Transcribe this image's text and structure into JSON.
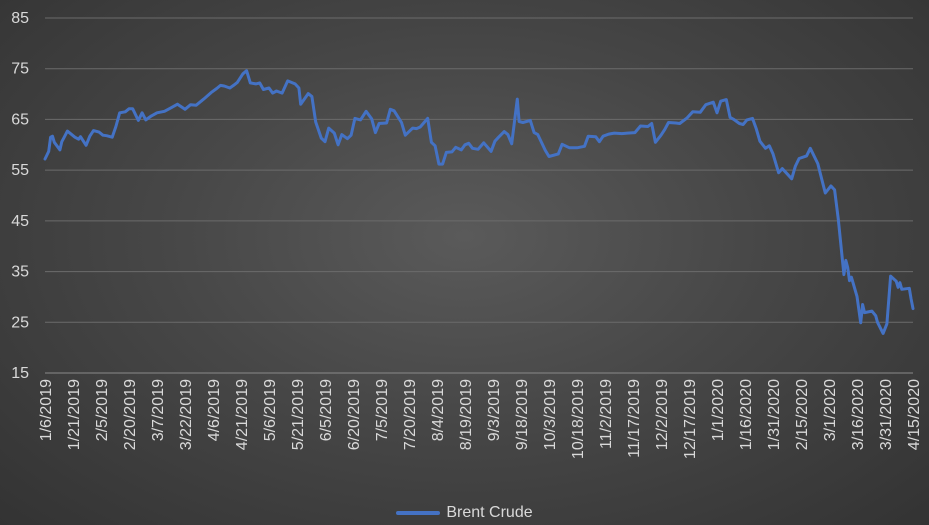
{
  "chart_data": {
    "type": "line",
    "title": "",
    "xlabel": "",
    "ylabel": "",
    "ylim": [
      15,
      85
    ],
    "y_ticks": [
      "15",
      "25",
      "35",
      "45",
      "55",
      "65",
      "75",
      "85"
    ],
    "x_ticks": [
      "1/6/2019",
      "1/21/2019",
      "2/5/2019",
      "2/20/2019",
      "3/7/2019",
      "3/22/2019",
      "4/6/2019",
      "4/21/2019",
      "5/6/2019",
      "5/21/2019",
      "6/5/2019",
      "6/20/2019",
      "7/5/2019",
      "7/20/2019",
      "8/4/2019",
      "8/19/2019",
      "9/3/2019",
      "9/18/2019",
      "10/3/2019",
      "10/18/2019",
      "11/2/2019",
      "11/17/2019",
      "12/2/2019",
      "12/17/2019",
      "1/1/2020",
      "1/16/2020",
      "1/31/2020",
      "2/15/2020",
      "3/1/2020",
      "3/16/2020",
      "3/31/2020",
      "4/15/2020"
    ],
    "x_start": "1/6/2019",
    "x_end": "4/15/2020",
    "gridlines": true,
    "legend_position": "bottom",
    "series": [
      {
        "name": "Brent Crude",
        "color": "#4472c4",
        "points": [
          [
            "1/6/2019",
            57.2
          ],
          [
            "1/8/2019",
            58.7
          ],
          [
            "1/9/2019",
            61.5
          ],
          [
            "1/10/2019",
            61.7
          ],
          [
            "1/11/2019",
            60.5
          ],
          [
            "1/14/2019",
            59.0
          ],
          [
            "1/15/2019",
            60.6
          ],
          [
            "1/16/2019",
            61.3
          ],
          [
            "1/18/2019",
            62.7
          ],
          [
            "1/22/2019",
            61.5
          ],
          [
            "1/24/2019",
            61.1
          ],
          [
            "1/25/2019",
            61.6
          ],
          [
            "1/28/2019",
            59.9
          ],
          [
            "1/30/2019",
            61.7
          ],
          [
            "2/1/2019",
            62.8
          ],
          [
            "2/4/2019",
            62.5
          ],
          [
            "2/6/2019",
            61.9
          ],
          [
            "2/8/2019",
            61.8
          ],
          [
            "2/11/2019",
            61.5
          ],
          [
            "2/13/2019",
            63.6
          ],
          [
            "2/15/2019",
            66.3
          ],
          [
            "2/18/2019",
            66.5
          ],
          [
            "2/20/2019",
            67.1
          ],
          [
            "2/22/2019",
            67.1
          ],
          [
            "2/25/2019",
            64.8
          ],
          [
            "2/27/2019",
            66.3
          ],
          [
            "3/1/2019",
            64.9
          ],
          [
            "3/4/2019",
            65.7
          ],
          [
            "3/7/2019",
            66.3
          ],
          [
            "3/11/2019",
            66.6
          ],
          [
            "3/14/2019",
            67.2
          ],
          [
            "3/18/2019",
            68.0
          ],
          [
            "3/22/2019",
            67.0
          ],
          [
            "3/25/2019",
            67.9
          ],
          [
            "3/28/2019",
            67.8
          ],
          [
            "4/1/2019",
            69.0
          ],
          [
            "4/5/2019",
            70.3
          ],
          [
            "4/8/2019",
            71.1
          ],
          [
            "4/10/2019",
            71.7
          ],
          [
            "4/12/2019",
            71.6
          ],
          [
            "4/15/2019",
            71.2
          ],
          [
            "4/17/2019",
            71.7
          ],
          [
            "4/19/2019",
            72.3
          ],
          [
            "4/22/2019",
            74.0
          ],
          [
            "4/24/2019",
            74.6
          ],
          [
            "4/26/2019",
            72.2
          ],
          [
            "4/29/2019",
            72.0
          ],
          [
            "5/1/2019",
            72.2
          ],
          [
            "5/3/2019",
            70.9
          ],
          [
            "5/6/2019",
            71.2
          ],
          [
            "5/8/2019",
            70.2
          ],
          [
            "5/10/2019",
            70.6
          ],
          [
            "5/13/2019",
            70.2
          ],
          [
            "5/16/2019",
            72.6
          ],
          [
            "5/20/2019",
            72.0
          ],
          [
            "5/22/2019",
            71.2
          ],
          [
            "5/23/2019",
            68.0
          ],
          [
            "5/27/2019",
            70.1
          ],
          [
            "5/29/2019",
            69.5
          ],
          [
            "5/31/2019",
            64.5
          ],
          [
            "6/3/2019",
            61.3
          ],
          [
            "6/5/2019",
            60.6
          ],
          [
            "6/7/2019",
            63.3
          ],
          [
            "6/10/2019",
            62.3
          ],
          [
            "6/12/2019",
            60.0
          ],
          [
            "6/14/2019",
            62.0
          ],
          [
            "6/17/2019",
            61.2
          ],
          [
            "6/19/2019",
            61.9
          ],
          [
            "6/21/2019",
            65.2
          ],
          [
            "6/24/2019",
            64.9
          ],
          [
            "6/27/2019",
            66.6
          ],
          [
            "6/30/2019",
            65.1
          ],
          [
            "7/2/2019",
            62.4
          ],
          [
            "7/4/2019",
            64.2
          ],
          [
            "7/8/2019",
            64.3
          ],
          [
            "7/10/2019",
            67.0
          ],
          [
            "7/12/2019",
            66.7
          ],
          [
            "7/16/2019",
            64.4
          ],
          [
            "7/18/2019",
            61.9
          ],
          [
            "7/22/2019",
            63.3
          ],
          [
            "7/24/2019",
            63.2
          ],
          [
            "7/26/2019",
            63.5
          ],
          [
            "7/30/2019",
            65.2
          ],
          [
            "8/1/2019",
            60.5
          ],
          [
            "8/3/2019",
            59.8
          ],
          [
            "8/5/2019",
            56.2
          ],
          [
            "8/7/2019",
            56.2
          ],
          [
            "8/9/2019",
            58.5
          ],
          [
            "8/12/2019",
            58.6
          ],
          [
            "8/14/2019",
            59.5
          ],
          [
            "8/17/2019",
            59.0
          ],
          [
            "8/19/2019",
            60.0
          ],
          [
            "8/21/2019",
            60.3
          ],
          [
            "8/23/2019",
            59.3
          ],
          [
            "8/26/2019",
            59.1
          ],
          [
            "8/29/2019",
            60.4
          ],
          [
            "9/2/2019",
            58.7
          ],
          [
            "9/4/2019",
            60.7
          ],
          [
            "9/6/2019",
            61.5
          ],
          [
            "9/9/2019",
            62.6
          ],
          [
            "9/11/2019",
            62.0
          ],
          [
            "9/13/2019",
            60.2
          ],
          [
            "9/16/2019",
            69.0
          ],
          [
            "9/17/2019",
            64.6
          ],
          [
            "9/19/2019",
            64.4
          ],
          [
            "9/23/2019",
            64.8
          ],
          [
            "9/25/2019",
            62.4
          ],
          [
            "9/27/2019",
            62.0
          ],
          [
            "10/1/2019",
            58.9
          ],
          [
            "10/3/2019",
            57.7
          ],
          [
            "10/8/2019",
            58.2
          ],
          [
            "10/10/2019",
            60.1
          ],
          [
            "10/14/2019",
            59.4
          ],
          [
            "10/16/2019",
            59.4
          ],
          [
            "10/18/2019",
            59.4
          ],
          [
            "10/22/2019",
            59.7
          ],
          [
            "10/24/2019",
            61.7
          ],
          [
            "10/28/2019",
            61.6
          ],
          [
            "10/30/2019",
            60.6
          ],
          [
            "11/1/2019",
            61.7
          ],
          [
            "11/4/2019",
            62.1
          ],
          [
            "11/7/2019",
            62.3
          ],
          [
            "11/11/2019",
            62.2
          ],
          [
            "11/14/2019",
            62.3
          ],
          [
            "11/18/2019",
            62.4
          ],
          [
            "11/21/2019",
            63.7
          ],
          [
            "11/25/2019",
            63.6
          ],
          [
            "11/27/2019",
            64.2
          ],
          [
            "11/29/2019",
            60.5
          ],
          [
            "12/2/2019",
            61.9
          ],
          [
            "12/4/2019",
            63.0
          ],
          [
            "12/6/2019",
            64.4
          ],
          [
            "12/10/2019",
            64.3
          ],
          [
            "12/12/2019",
            64.2
          ],
          [
            "12/16/2019",
            65.3
          ],
          [
            "12/19/2019",
            66.5
          ],
          [
            "12/23/2019",
            66.4
          ],
          [
            "12/26/2019",
            67.9
          ],
          [
            "12/30/2019",
            68.4
          ],
          [
            "1/1/2020",
            66.3
          ],
          [
            "1/3/2020",
            68.6
          ],
          [
            "1/6/2020",
            68.9
          ],
          [
            "1/8/2020",
            65.4
          ],
          [
            "1/10/2020",
            65.0
          ],
          [
            "1/13/2020",
            64.2
          ],
          [
            "1/15/2020",
            64.0
          ],
          [
            "1/17/2020",
            64.9
          ],
          [
            "1/20/2020",
            65.2
          ],
          [
            "1/22/2020",
            63.2
          ],
          [
            "1/24/2020",
            60.7
          ],
          [
            "1/27/2020",
            59.3
          ],
          [
            "1/29/2020",
            59.8
          ],
          [
            "1/31/2020",
            58.2
          ],
          [
            "2/3/2020",
            54.5
          ],
          [
            "2/5/2020",
            55.3
          ],
          [
            "2/7/2020",
            54.5
          ],
          [
            "2/10/2020",
            53.3
          ],
          [
            "2/12/2020",
            55.8
          ],
          [
            "2/14/2020",
            57.3
          ],
          [
            "2/18/2020",
            57.8
          ],
          [
            "2/20/2020",
            59.3
          ],
          [
            "2/24/2020",
            56.3
          ],
          [
            "2/26/2020",
            53.4
          ],
          [
            "2/28/2020",
            50.5
          ],
          [
            "3/2/2020",
            51.9
          ],
          [
            "3/4/2020",
            51.1
          ],
          [
            "3/6/2020",
            45.3
          ],
          [
            "3/9/2020",
            34.4
          ],
          [
            "3/10/2020",
            37.2
          ],
          [
            "3/11/2020",
            35.8
          ],
          [
            "3/12/2020",
            33.2
          ],
          [
            "3/13/2020",
            33.9
          ],
          [
            "3/16/2020",
            30.1
          ],
          [
            "3/18/2020",
            24.9
          ],
          [
            "3/19/2020",
            28.5
          ],
          [
            "3/20/2020",
            26.9
          ],
          [
            "3/24/2020",
            27.2
          ],
          [
            "3/26/2020",
            26.3
          ],
          [
            "3/27/2020",
            25.0
          ],
          [
            "3/30/2020",
            22.8
          ],
          [
            "4/1/2020",
            24.7
          ],
          [
            "4/3/2020",
            34.1
          ],
          [
            "4/6/2020",
            33.1
          ],
          [
            "4/7/2020",
            31.9
          ],
          [
            "4/8/2020",
            32.8
          ],
          [
            "4/9/2020",
            31.5
          ],
          [
            "4/13/2020",
            31.7
          ],
          [
            "4/14/2020",
            29.6
          ],
          [
            "4/15/2020",
            27.7
          ]
        ]
      }
    ]
  }
}
